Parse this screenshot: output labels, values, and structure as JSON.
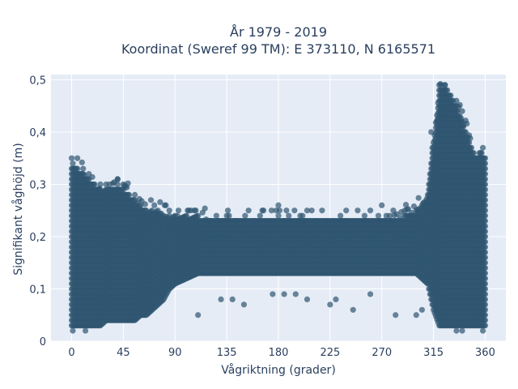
{
  "chart_data": {
    "type": "scatter",
    "title_line1": "År 1979 - 2019",
    "title_line2": "Koordinat (Sweref 99 TM): E 373110, N 6165571",
    "xlabel": "Vågriktning (grader)",
    "ylabel": "Signifikant våghöjd (m)",
    "xlim": [
      -18,
      378
    ],
    "ylim": [
      0,
      0.51
    ],
    "x_ticks": [
      0,
      45,
      90,
      135,
      180,
      225,
      270,
      315,
      360
    ],
    "x_tick_labels": [
      "0",
      "45",
      "90",
      "135",
      "180",
      "225",
      "270",
      "315",
      "360"
    ],
    "y_ticks": [
      0,
      0.1,
      0.2,
      0.3,
      0.4,
      0.5
    ],
    "y_tick_labels": [
      "0",
      "0,1",
      "0,2",
      "0,3",
      "0,4",
      "0,5"
    ],
    "grid": true,
    "marker_color": "#2f5570",
    "background_color": "#e5ecf6",
    "envelope": {
      "note_values": "approximate range of dense point cloud per direction",
      "x": [
        0,
        5,
        10,
        15,
        20,
        25,
        30,
        35,
        40,
        45,
        50,
        55,
        60,
        65,
        70,
        75,
        80,
        85,
        90,
        100,
        110,
        120,
        130,
        140,
        150,
        160,
        170,
        180,
        190,
        200,
        210,
        220,
        230,
        240,
        250,
        260,
        270,
        280,
        290,
        300,
        305,
        310,
        315,
        320,
        325,
        330,
        335,
        340,
        345,
        350,
        355,
        360
      ],
      "ymin": [
        0.03,
        0.03,
        0.03,
        0.03,
        0.03,
        0.03,
        0.04,
        0.04,
        0.04,
        0.04,
        0.04,
        0.04,
        0.05,
        0.05,
        0.06,
        0.07,
        0.08,
        0.1,
        0.11,
        0.12,
        0.13,
        0.13,
        0.13,
        0.13,
        0.13,
        0.13,
        0.13,
        0.13,
        0.13,
        0.13,
        0.13,
        0.13,
        0.13,
        0.13,
        0.13,
        0.13,
        0.13,
        0.13,
        0.13,
        0.13,
        0.12,
        0.11,
        0.06,
        0.03,
        0.03,
        0.03,
        0.03,
        0.03,
        0.03,
        0.03,
        0.03,
        0.03
      ],
      "ymax": [
        0.33,
        0.33,
        0.32,
        0.31,
        0.3,
        0.29,
        0.29,
        0.29,
        0.3,
        0.29,
        0.28,
        0.27,
        0.26,
        0.25,
        0.25,
        0.25,
        0.24,
        0.24,
        0.24,
        0.24,
        0.24,
        0.23,
        0.23,
        0.23,
        0.23,
        0.23,
        0.23,
        0.23,
        0.23,
        0.23,
        0.23,
        0.23,
        0.23,
        0.23,
        0.23,
        0.23,
        0.23,
        0.23,
        0.24,
        0.25,
        0.26,
        0.28,
        0.38,
        0.48,
        0.49,
        0.47,
        0.45,
        0.42,
        0.39,
        0.36,
        0.35,
        0.35
      ]
    },
    "outliers": [
      {
        "x": 0,
        "y": 0.35
      },
      {
        "x": 1,
        "y": 0.02
      },
      {
        "x": 12,
        "y": 0.02
      },
      {
        "x": 110,
        "y": 0.05
      },
      {
        "x": 130,
        "y": 0.08
      },
      {
        "x": 140,
        "y": 0.08
      },
      {
        "x": 150,
        "y": 0.07
      },
      {
        "x": 175,
        "y": 0.09
      },
      {
        "x": 185,
        "y": 0.09
      },
      {
        "x": 195,
        "y": 0.09
      },
      {
        "x": 205,
        "y": 0.08
      },
      {
        "x": 225,
        "y": 0.07
      },
      {
        "x": 230,
        "y": 0.08
      },
      {
        "x": 245,
        "y": 0.06
      },
      {
        "x": 260,
        "y": 0.09
      },
      {
        "x": 282,
        "y": 0.05
      },
      {
        "x": 300,
        "y": 0.05
      },
      {
        "x": 305,
        "y": 0.06
      },
      {
        "x": 313,
        "y": 0.4
      },
      {
        "x": 318,
        "y": 0.42
      },
      {
        "x": 322,
        "y": 0.49
      },
      {
        "x": 325,
        "y": 0.49
      },
      {
        "x": 335,
        "y": 0.02
      },
      {
        "x": 340,
        "y": 0.02
      },
      {
        "x": 358,
        "y": 0.02
      },
      {
        "x": 180,
        "y": 0.26
      },
      {
        "x": 270,
        "y": 0.26
      },
      {
        "x": 40,
        "y": 0.31
      }
    ]
  }
}
